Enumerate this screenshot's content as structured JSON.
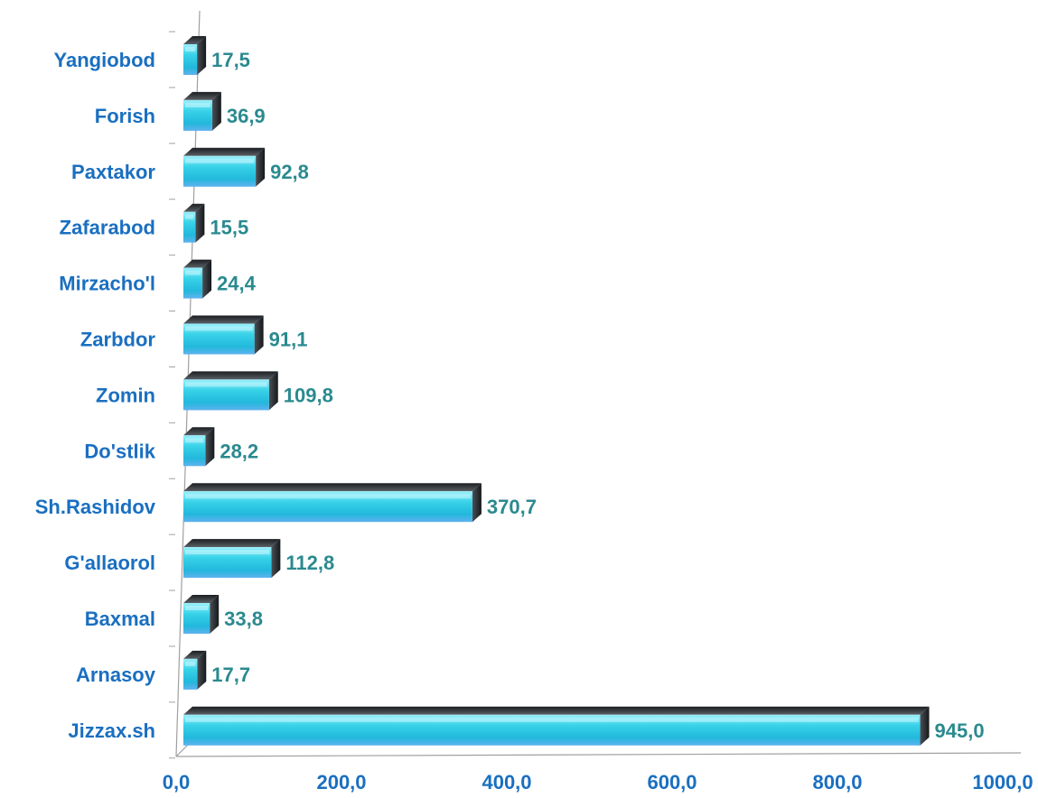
{
  "chart_data": {
    "type": "bar",
    "orientation": "horizontal",
    "categories": [
      "Yangiobod",
      "Forish",
      "Paxtakor",
      "Zafarabod",
      "Mirzacho'l",
      "Zarbdor",
      "Zomin",
      "Do'stlik",
      "Sh.Rashidov",
      "G'allaorol",
      "Baxmal",
      "Arnasoy",
      "Jizzax.sh"
    ],
    "values": [
      17.5,
      36.9,
      92.8,
      15.5,
      24.4,
      91.1,
      109.8,
      28.2,
      370.7,
      112.8,
      33.8,
      17.7,
      945.0
    ],
    "value_labels": [
      "17,5",
      "36,9",
      "92,8",
      "15,5",
      "24,4",
      "91,1",
      "109,8",
      "28,2",
      "370,7",
      "112,8",
      "33,8",
      "17,7",
      "945,0"
    ],
    "x_ticks": [
      0,
      200,
      400,
      600,
      800,
      1000
    ],
    "x_tick_labels": [
      "0,0",
      "200,0",
      "400,0",
      "600,0",
      "800,0",
      "1000,0"
    ],
    "xlim": [
      0,
      1000
    ],
    "title": "",
    "xlabel": "",
    "ylabel": "",
    "grid": false,
    "legend": "none",
    "style": "3d-bars",
    "colors": {
      "bar_light": "#7fe6f5",
      "bar_mid": "#2ec6e0",
      "bar_dark": "#1e9fc9",
      "bar_shadow": "#2b2f33",
      "category_text": "#1a6fc0",
      "value_text": "#2a8a8f",
      "axis": "#a0a0a0"
    }
  }
}
